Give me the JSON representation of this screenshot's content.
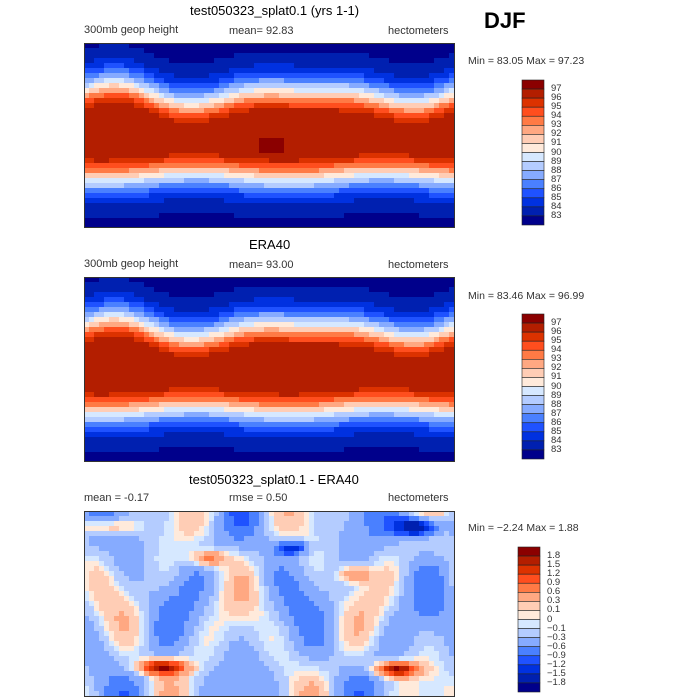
{
  "season": "DJF",
  "colors": [
    "#8b0000",
    "#b31e00",
    "#dc3200",
    "#ff4e1e",
    "#ff7a45",
    "#ffa882",
    "#ffcdb5",
    "#ffeadb",
    "#d6e8ff",
    "#b4ccff",
    "#86abff",
    "#4a80ff",
    "#1f52ff",
    "#0031e0",
    "#0020b0",
    "#00008b"
  ],
  "panels": [
    {
      "title": "test050323_splat0.1 (yrs 1-1)",
      "left": "300mb geop height",
      "center": "mean=  92.83",
      "right": "hectometers",
      "minmax": "Min =   83.05 Max =   97.23",
      "levels": [
        "97",
        "96",
        "95",
        "94",
        "93",
        "92",
        "91",
        "90",
        "89",
        "88",
        "87",
        "86",
        "85",
        "84",
        "83"
      ]
    },
    {
      "title": "ERA40",
      "left": "300mb geop height",
      "center": "mean=  93.00",
      "right": "hectometers",
      "minmax": "Min =   83.46 Max =   96.99",
      "levels": [
        "97",
        "96",
        "95",
        "94",
        "93",
        "92",
        "91",
        "90",
        "89",
        "88",
        "87",
        "86",
        "85",
        "84",
        "83"
      ]
    },
    {
      "title": "test050323_splat0.1 - ERA40",
      "left": "mean =   -0.17",
      "center": "rmse =    0.50",
      "right": "hectometers",
      "minmax": "Min =  −2.24 Max =    1.88",
      "levels": [
        "1.8",
        "1.5",
        "1.2",
        "0.9",
        "0.6",
        "0.3",
        "0.1",
        "0",
        "−0.1",
        "−0.3",
        "−0.6",
        "−0.9",
        "−1.2",
        "−1.5",
        "−1.8"
      ]
    }
  ]
}
